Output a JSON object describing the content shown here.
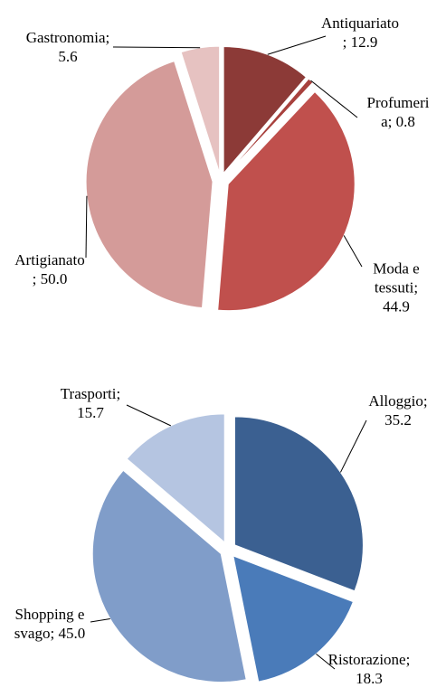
{
  "chart_data": [
    {
      "type": "pie",
      "categories": [
        "Antiquariato",
        "Profumeria",
        "Moda e tessuti",
        "Artigianato",
        "Gastronomia"
      ],
      "values": [
        12.9,
        0.8,
        44.9,
        50.0,
        5.6
      ],
      "value_labels": [
        "12.9",
        "0.8",
        "44.9",
        "50.0",
        "5.6"
      ],
      "label_separator": "; ",
      "colors": [
        "#8c3a37",
        "#a8413d",
        "#c0504d",
        "#d49b99",
        "#e6c2c1"
      ]
    },
    {
      "type": "pie",
      "categories": [
        "Alloggio",
        "Ristorazione",
        "Shopping e svago",
        "Trasporti"
      ],
      "values": [
        35.2,
        18.3,
        45.0,
        15.7
      ],
      "value_labels": [
        "35.2",
        "18.3",
        "45.0",
        "15.7"
      ],
      "label_separator": "; ",
      "colors": [
        "#3b6091",
        "#4a7bb9",
        "#809dc9",
        "#b5c5e1"
      ]
    }
  ]
}
